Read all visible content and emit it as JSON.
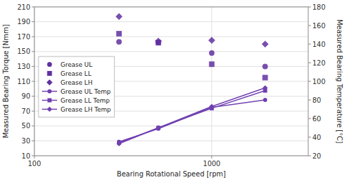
{
  "chart_data": {
    "type": "scatter",
    "xlabel": "Bearing Rotational Speed [rpm]",
    "ylabel": "Measured Bearing Torque [Nmm]",
    "y2label": "Measured Bearing Temperature [°C]",
    "log": "x",
    "x": [
      300,
      500,
      1000,
      2000
    ],
    "xlim": [
      100,
      3500
    ],
    "xticks": [
      100,
      1000
    ],
    "ylim": [
      10,
      210
    ],
    "yticks": [
      10,
      30,
      50,
      70,
      90,
      110,
      130,
      150,
      170,
      190,
      210
    ],
    "y2lim": [
      20,
      180
    ],
    "y2ticks": [
      20,
      40,
      60,
      80,
      100,
      120,
      140,
      160,
      180
    ],
    "grid": true,
    "legend": "left",
    "series": [
      {
        "name": "Grease UL",
        "type": "scatter",
        "marker": "circle",
        "color": "#6030a0",
        "values": [
          163,
          162,
          148,
          130
        ]
      },
      {
        "name": "Grease LL",
        "type": "scatter",
        "marker": "square",
        "color": "#6030a0",
        "values": [
          174,
          162,
          133,
          115
        ]
      },
      {
        "name": "Grease LH",
        "type": "scatter",
        "marker": "diamond",
        "color": "#6030a0",
        "values": [
          197,
          164,
          165,
          160
        ]
      },
      {
        "name": "Grease UL Temp",
        "type": "line",
        "axis": "y2",
        "marker": "circle",
        "color": "#7040b0",
        "values": [
          35,
          49,
          72,
          80
        ]
      },
      {
        "name": "Grease LL Temp",
        "type": "line",
        "axis": "y2",
        "marker": "square",
        "color": "#7040b0",
        "values": [
          34,
          50,
          71,
          90
        ]
      },
      {
        "name": "Grease LH Temp",
        "type": "line",
        "axis": "y2",
        "marker": "diamond",
        "color": "#7040b0",
        "values": [
          33,
          50,
          73,
          93
        ]
      }
    ]
  }
}
